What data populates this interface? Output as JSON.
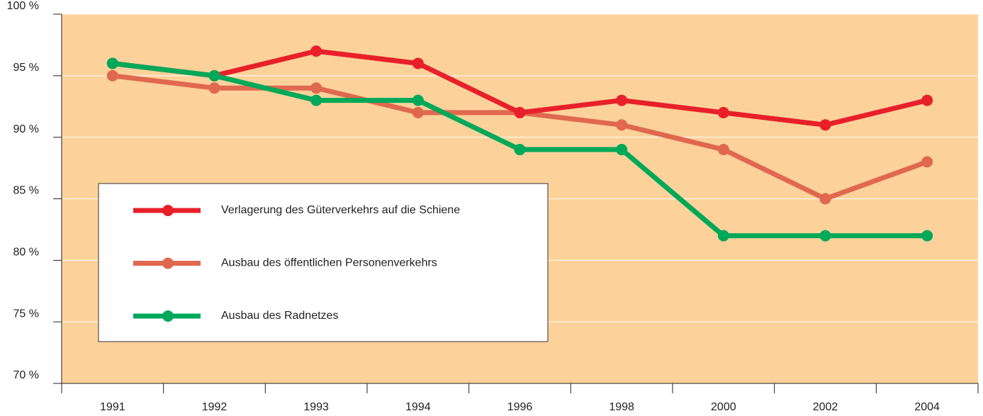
{
  "chart_data": {
    "type": "line",
    "categories": [
      "1991",
      "1992",
      "1993",
      "1994",
      "1996",
      "1998",
      "2000",
      "2002",
      "2004"
    ],
    "series": [
      {
        "name": "Verlagerung des Güterverkehrs auf die Schiene",
        "color": "#e8202a",
        "values": [
          96,
          95,
          97,
          96,
          92,
          93,
          92,
          91,
          93
        ]
      },
      {
        "name": "Ausbau des öffentlichen Personenverkehrs",
        "color": "#e0684f",
        "values": [
          95,
          94,
          94,
          92,
          92,
          91,
          89,
          85,
          88
        ]
      },
      {
        "name": "Ausbau des Radnetzes",
        "color": "#00a85a",
        "values": [
          96,
          95,
          93,
          93,
          89,
          89,
          82,
          82,
          82
        ]
      }
    ],
    "ylim": [
      70,
      100
    ],
    "yticks": [
      {
        "value": 70,
        "label": "70 %"
      },
      {
        "value": 75,
        "label": "75 %"
      },
      {
        "value": 80,
        "label": "80 %"
      },
      {
        "value": 85,
        "label": "85 %"
      },
      {
        "value": 90,
        "label": "90 %"
      },
      {
        "value": 95,
        "label": "95 %"
      },
      {
        "value": 100,
        "label": "100 %"
      }
    ],
    "grid": true
  }
}
